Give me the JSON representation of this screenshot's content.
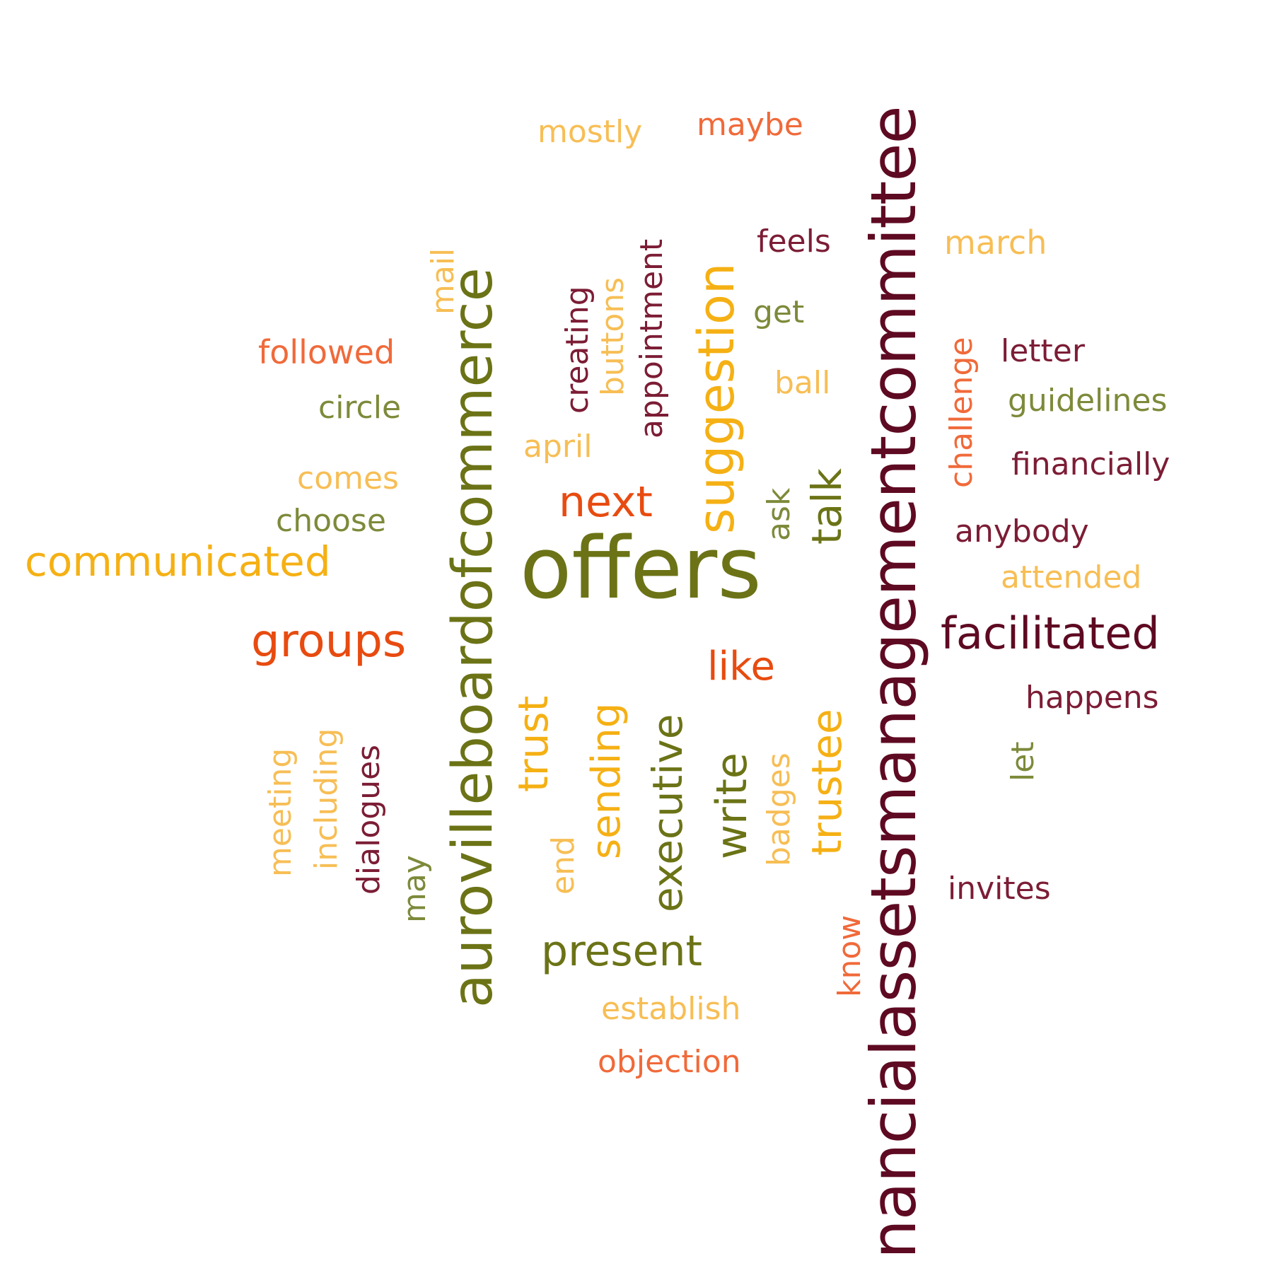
{
  "palette": {
    "olive": "#6b7316",
    "amber": "#f5b014",
    "light_amber": "#f7be55",
    "orange": "#f06a3a",
    "red_orange": "#e84b10",
    "maroon": "#7c1d35",
    "dark_maroon": "#5e0a22",
    "sage": "#7d8a3a"
  },
  "words": [
    {
      "text": "offers",
      "color": "#6b7316",
      "vertical": false
    },
    {
      "text": "nancialassetsmanagementcommittee",
      "color": "#5e0a22",
      "vertical": true
    },
    {
      "text": "aurovilleboardofcommerce",
      "color": "#6b7316",
      "vertical": true
    },
    {
      "text": "suggestion",
      "color": "#f5b014",
      "vertical": true
    },
    {
      "text": "communicated",
      "color": "#f5b014",
      "vertical": false
    },
    {
      "text": "facilitated",
      "color": "#5e0a22",
      "vertical": false
    },
    {
      "text": "groups",
      "color": "#e84b10",
      "vertical": false
    },
    {
      "text": "present",
      "color": "#6b7316",
      "vertical": false
    },
    {
      "text": "executive",
      "color": "#6b7316",
      "vertical": true
    },
    {
      "text": "trustee",
      "color": "#f5b014",
      "vertical": true
    },
    {
      "text": "sending",
      "color": "#f5b014",
      "vertical": true
    },
    {
      "text": "trust",
      "color": "#f5b014",
      "vertical": true
    },
    {
      "text": "write",
      "color": "#6b7316",
      "vertical": true
    },
    {
      "text": "talk",
      "color": "#6b7316",
      "vertical": true
    },
    {
      "text": "next",
      "color": "#e84b10",
      "vertical": false
    },
    {
      "text": "like",
      "color": "#e84b10",
      "vertical": false
    },
    {
      "text": "mostly",
      "color": "#f7be55",
      "vertical": false
    },
    {
      "text": "maybe",
      "color": "#f06a3a",
      "vertical": false
    },
    {
      "text": "feels",
      "color": "#7c1d35",
      "vertical": false
    },
    {
      "text": "march",
      "color": "#f7be55",
      "vertical": false
    },
    {
      "text": "get",
      "color": "#7d8a3a",
      "vertical": false
    },
    {
      "text": "ball",
      "color": "#f7be55",
      "vertical": false
    },
    {
      "text": "letter",
      "color": "#7c1d35",
      "vertical": false
    },
    {
      "text": "guidelines",
      "color": "#7d8a3a",
      "vertical": false
    },
    {
      "text": "financially",
      "color": "#7c1d35",
      "vertical": false
    },
    {
      "text": "anybody",
      "color": "#7c1d35",
      "vertical": false
    },
    {
      "text": "attended",
      "color": "#f7be55",
      "vertical": false
    },
    {
      "text": "happens",
      "color": "#7c1d35",
      "vertical": false
    },
    {
      "text": "invites",
      "color": "#7c1d35",
      "vertical": false
    },
    {
      "text": "followed",
      "color": "#f06a3a",
      "vertical": false
    },
    {
      "text": "circle",
      "color": "#7d8a3a",
      "vertical": false
    },
    {
      "text": "comes",
      "color": "#f7be55",
      "vertical": false
    },
    {
      "text": "choose",
      "color": "#7d8a3a",
      "vertical": false
    },
    {
      "text": "april",
      "color": "#f7be55",
      "vertical": false
    },
    {
      "text": "establish",
      "color": "#f7be55",
      "vertical": false
    },
    {
      "text": "objection",
      "color": "#f06a3a",
      "vertical": false
    },
    {
      "text": "mail",
      "color": "#f7be55",
      "vertical": true
    },
    {
      "text": "creating",
      "color": "#7c1d35",
      "vertical": true
    },
    {
      "text": "buttons",
      "color": "#f7be55",
      "vertical": true
    },
    {
      "text": "appointment",
      "color": "#7c1d35",
      "vertical": true
    },
    {
      "text": "ask",
      "color": "#7d8a3a",
      "vertical": true
    },
    {
      "text": "challenge",
      "color": "#f06a3a",
      "vertical": true
    },
    {
      "text": "let",
      "color": "#7d8a3a",
      "vertical": true
    },
    {
      "text": "meeting",
      "color": "#f7be55",
      "vertical": true
    },
    {
      "text": "including",
      "color": "#f7be55",
      "vertical": true
    },
    {
      "text": "dialogues",
      "color": "#7c1d35",
      "vertical": true
    },
    {
      "text": "may",
      "color": "#7d8a3a",
      "vertical": true
    },
    {
      "text": "end",
      "color": "#f7be55",
      "vertical": true
    },
    {
      "text": "badges",
      "color": "#f7be55",
      "vertical": true
    },
    {
      "text": "know",
      "color": "#f06a3a",
      "vertical": true
    }
  ]
}
